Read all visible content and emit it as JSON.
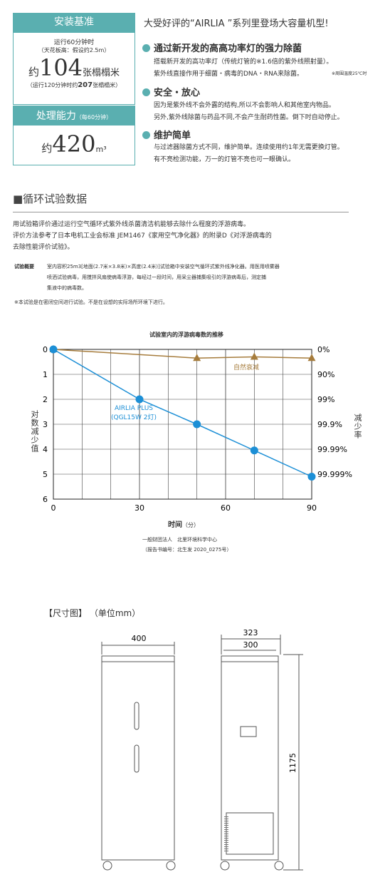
{
  "spec_box": {
    "install_title": "安装基准",
    "install_lines": [
      "运行60分钟时",
      "（天花板高：假设约2.5m）"
    ],
    "install_prefix": "约",
    "install_value": "104",
    "install_unit": "张榻榻米",
    "install_note_pre": "（运行120分钟时约",
    "install_note_value": "207",
    "install_note_post": "张榻榻米）",
    "capacity_title": "处理能力",
    "capacity_note": "（每60分钟）",
    "capacity_prefix": "约",
    "capacity_value": "420",
    "capacity_unit": "m³"
  },
  "intro": {
    "headline": "大受好评的“AIRLIA ”系列里登场大容量机型!",
    "features": [
      {
        "title": "通过新开发的高高功率灯的强力除菌",
        "lines": [
          "搭载新开发的高功率灯（传统灯管的※1.6倍的紫外线照射量）。",
          "紫外线直接作用于细菌・病毒的DNA・RNA来除菌。"
        ],
        "note": "※周围温度25℃时"
      },
      {
        "title": "安全・放心",
        "lines": [
          "因为是紫外线不会外露的结构,所以不会影响人和其他室内物品。",
          "另外,紫外线除菌与药品不同,不会产生耐药性菌。倒下时自动停止。"
        ]
      },
      {
        "title": "维护简单",
        "lines": [
          "与过滤器除菌方式不同，维护简单。连续使用约1年无需更换灯管。",
          "有不亮检测功能，万一的灯管不亮也可一眼确认。"
        ]
      }
    ]
  },
  "section": {
    "title": "■循环试验数据",
    "paragraphs": [
      "用试验箱评价通过运行空气循环式紫外线杀菌清洁机能够去除什么程度的浮游病毒。",
      "评价方法参考了日本电机工业会标准 JEM1467《家用空气净化器》的附录D《对浮游病毒的",
      "去除性能评价试验》。"
    ],
    "overview_label": "试验概要",
    "overview_lines": [
      "室内容积25m3[地面(2.7米×3.8米)×高度(2.4米)]试验箱中安装空气循环式紫外线净化器。用医用喷雾器",
      "喷洒试验病毒，用搅拌风扇使病毒浮游，每经过一段时间，用采尘器捕集吸引的浮游病毒后，测定捕",
      "集液中的病毒数。"
    ],
    "footnote": "※本试验是在密闭空间进行试验。不是在设想的实际场所环境下进行。"
  },
  "chart_data": {
    "type": "line",
    "title": "试验室内的浮游病毒数的推移",
    "x_label": "时间",
    "x_unit": "（分）",
    "y_label": "对数减少值",
    "y2_label": "减少率",
    "xlim": [
      0,
      90
    ],
    "xticks": [
      0,
      30,
      60,
      90
    ],
    "ylim": [
      6,
      0
    ],
    "yticks": [
      0,
      1,
      2,
      3,
      4,
      5,
      6
    ],
    "y2lim": [
      6,
      0
    ],
    "y2ticks": [
      {
        "value": 0,
        "label": "0%"
      },
      {
        "value": 1,
        "label": "90%"
      },
      {
        "value": 2,
        "label": "99%"
      },
      {
        "value": 3,
        "label": "99.9%"
      },
      {
        "value": 4,
        "label": "99.99%"
      },
      {
        "value": 5,
        "label": "99.999%"
      }
    ],
    "grid": true,
    "series": [
      {
        "name": "AIRLIA PLUS (QGL15W 2灯)",
        "color": "#1c8fd6",
        "marker": "circle",
        "x": [
          0,
          30,
          50,
          70,
          90
        ],
        "values": [
          0,
          2,
          3,
          4.05,
          5.1
        ]
      },
      {
        "name": "自然衰减",
        "color": "#a67c3c",
        "marker": "triangle",
        "x": [
          0,
          50,
          70,
          90
        ],
        "values": [
          0,
          0.35,
          0.3,
          0.35
        ]
      }
    ]
  },
  "source": [
    "一般财团法人　北里环境科学中心",
    "（报告书编号：北生发 2020_0275号）"
  ],
  "dimensions": {
    "title": "【尺寸图】",
    "unit": "（单位mm）",
    "width": "400",
    "depth_outer": "323",
    "depth": "300",
    "height": "1175"
  }
}
